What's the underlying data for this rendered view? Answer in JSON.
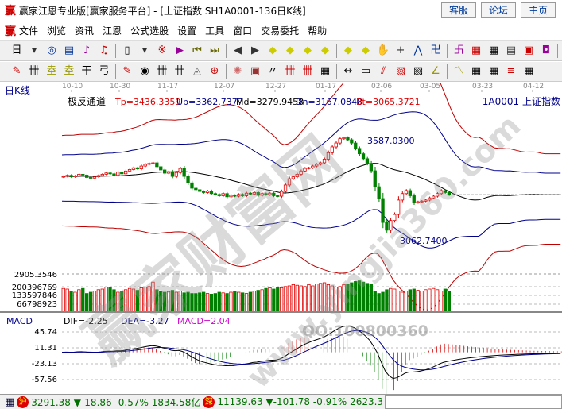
{
  "window": {
    "logo": "赢",
    "title": "赢家江恩专业版[赢家服务平台] - [上证指数  SH1A0001-136日K线]",
    "buttons": [
      "客服",
      "论坛",
      "主页"
    ]
  },
  "menu": {
    "logo": "赢",
    "items": [
      "文件",
      "浏览",
      "资讯",
      "江恩",
      "公式选股",
      "设置",
      "工具",
      "窗口",
      "交易委托",
      "帮助"
    ]
  },
  "toolbar1": [
    "period-day",
    "dropdown",
    "window",
    "notes",
    "indicator-3",
    "indicator-9",
    "candle-type",
    "dropdown",
    "fuquan",
    "analysis",
    "first",
    "last",
    "prev",
    "next",
    "arrow-left",
    "arrow-right",
    "expand",
    "shrink",
    "zoom-in",
    "zoom-out",
    "hand",
    "crosshair",
    "draw",
    "festival",
    "gann",
    "calendar",
    "calculator",
    "report",
    "save",
    "network",
    "trade"
  ],
  "toolbar2": [
    "pen",
    "gann-lines",
    "gold-lines",
    "gold-lines-2",
    "fib-lines",
    "spiral",
    "pen-2",
    "circle",
    "parallel",
    "square-lines",
    "triangle",
    "target",
    "star",
    "square",
    "angle",
    "line-1",
    "line-2",
    "grid",
    "measure",
    "box",
    "fan",
    "box-2",
    "box-3",
    "angle-2",
    "wave",
    "grid-2",
    "grid-3",
    "lines",
    "table"
  ],
  "chart": {
    "period_label": "日K线",
    "dates": [
      "10-10",
      "10-30",
      "11-17",
      "12-07",
      "12-27",
      "01-17",
      "02-06",
      "03-05",
      "03-23",
      "04-12"
    ],
    "indicator": {
      "name": "极反通道",
      "tp": "Tp=3436.3359",
      "up": "Up=3362.7377",
      "md": "Md=3279.9458",
      "dn": "Dn=3167.0848",
      "bt": "Bt=3065.3721"
    },
    "symbol": "1A0001  上证指数",
    "high_label": "3587.0300",
    "low_label": "3062.7400",
    "price_axis_label": "2905.3546",
    "volume_axis": [
      "200396769",
      "133597846",
      "66798923"
    ],
    "macd": {
      "label": "MACD",
      "dif": "DIF=-2.25",
      "dea": "DEA=-3.27",
      "macd": "MACD=2.04",
      "axis": [
        "45.74",
        "11.31",
        "-23.13",
        "-57.56"
      ]
    },
    "colors": {
      "up": "#e00000",
      "down": "#008000",
      "band_outer": "#c00000",
      "band_inner": "#00008b",
      "middle": "#000000",
      "dif": "#000000",
      "dea": "#00008b",
      "macd_label": "#cc00cc"
    },
    "closes": [
      3380,
      3385,
      3378,
      3382,
      3390,
      3386,
      3375,
      3372,
      3378,
      3384,
      3390,
      3396,
      3392,
      3385,
      3400,
      3392,
      3405,
      3412,
      3420,
      3415,
      3428,
      3436,
      3440,
      3443,
      3425,
      3410,
      3395,
      3402,
      3380,
      3398,
      3417,
      3380,
      3350,
      3325,
      3318,
      3310,
      3305,
      3312,
      3300,
      3296,
      3290,
      3300,
      3285,
      3292,
      3288,
      3296,
      3290,
      3302,
      3298,
      3305,
      3292,
      3300,
      3295,
      3302,
      3290,
      3288,
      3310,
      3340,
      3369,
      3378,
      3390,
      3405,
      3417,
      3420,
      3428,
      3436,
      3443,
      3460,
      3490,
      3517,
      3535,
      3555,
      3560,
      3550,
      3535,
      3510,
      3485,
      3462,
      3440,
      3406,
      3332,
      3277,
      3166,
      3130,
      3175,
      3203,
      3270,
      3300,
      3314,
      3290,
      3258,
      3262,
      3265,
      3270,
      3280,
      3288,
      3300,
      3314,
      3305,
      3295
    ],
    "volumes_m": [
      180,
      175,
      160,
      150,
      170,
      180,
      140,
      150,
      160,
      170,
      175,
      190,
      185,
      170,
      150,
      160,
      170,
      180,
      175,
      165,
      185,
      190,
      195,
      230,
      170,
      160,
      150,
      155,
      165,
      150,
      160,
      145,
      150,
      140,
      140,
      145,
      150,
      140,
      135,
      140,
      150,
      145,
      140,
      150,
      160,
      150,
      145,
      140,
      150,
      160,
      165,
      170,
      180,
      185,
      175,
      190,
      185,
      195,
      200,
      210,
      205,
      200,
      195,
      210,
      200,
      215,
      220,
      225,
      210,
      200,
      190,
      195,
      210,
      215,
      225,
      235,
      240,
      230,
      220,
      210,
      160,
      140,
      150,
      170,
      180,
      175,
      160,
      150,
      160,
      170,
      175,
      165,
      160,
      170,
      175,
      180,
      170,
      160,
      175,
      160
    ]
  },
  "watermark": {
    "cn": "赢家财富网",
    "url": "www.yingjia360.com",
    "qq": "QQ:100800360"
  },
  "status": {
    "sh_badge": "沪",
    "sh": "3291.38 ▼-18.86 -0.57% 1834.58亿",
    "sz_badge": "深",
    "sz": "11139.63 ▼-101.78 -0.91% 2623.3"
  }
}
